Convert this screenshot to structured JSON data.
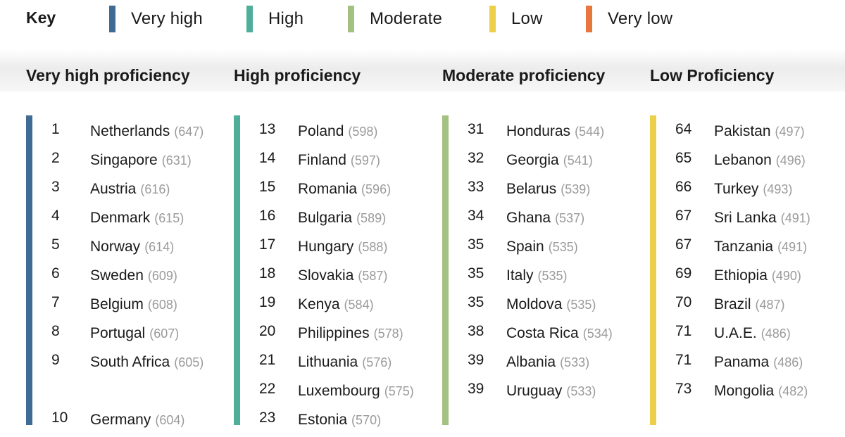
{
  "key": {
    "title": "Key",
    "items": [
      {
        "label": "Very high",
        "color": "#3f6b94"
      },
      {
        "label": "High",
        "color": "#4fae9a"
      },
      {
        "label": "Moderate",
        "color": "#a3c181"
      },
      {
        "label": "Low",
        "color": "#ecd04a"
      },
      {
        "label": "Very low",
        "color": "#e8773e"
      }
    ]
  },
  "columns": [
    {
      "title": "Very high proficiency",
      "color": "#3f6b94",
      "rows": [
        {
          "rank": "1",
          "country": "Netherlands",
          "score": "(647)"
        },
        {
          "rank": "2",
          "country": "Singapore",
          "score": "(631)"
        },
        {
          "rank": "3",
          "country": "Austria",
          "score": "(616)"
        },
        {
          "rank": "4",
          "country": "Denmark",
          "score": "(615)"
        },
        {
          "rank": "5",
          "country": "Norway",
          "score": "(614)"
        },
        {
          "rank": "6",
          "country": "Sweden",
          "score": "(609)"
        },
        {
          "rank": "7",
          "country": "Belgium",
          "score": "(608)"
        },
        {
          "rank": "8",
          "country": "Portugal",
          "score": "(607)"
        },
        {
          "rank": "9",
          "country": "South Africa",
          "score": "(605)"
        },
        {
          "rank": "10",
          "country": "Germany",
          "score": "(604)"
        }
      ]
    },
    {
      "title": "High proficiency",
      "color": "#4fae9a",
      "rows": [
        {
          "rank": "13",
          "country": "Poland",
          "score": "(598)"
        },
        {
          "rank": "14",
          "country": "Finland",
          "score": "(597)"
        },
        {
          "rank": "15",
          "country": "Romania",
          "score": "(596)"
        },
        {
          "rank": "16",
          "country": "Bulgaria",
          "score": "(589)"
        },
        {
          "rank": "17",
          "country": "Hungary",
          "score": "(588)"
        },
        {
          "rank": "18",
          "country": "Slovakia",
          "score": "(587)"
        },
        {
          "rank": "19",
          "country": "Kenya",
          "score": "(584)"
        },
        {
          "rank": "20",
          "country": "Philippines",
          "score": "(578)"
        },
        {
          "rank": "21",
          "country": "Lithuania",
          "score": "(576)"
        },
        {
          "rank": "22",
          "country": "Luxembourg",
          "score": "(575)"
        },
        {
          "rank": "23",
          "country": "Estonia",
          "score": "(570)"
        }
      ]
    },
    {
      "title": "Moderate proficiency",
      "color": "#a3c181",
      "rows": [
        {
          "rank": "31",
          "country": "Honduras",
          "score": "(544)"
        },
        {
          "rank": "32",
          "country": "Georgia",
          "score": "(541)"
        },
        {
          "rank": "33",
          "country": "Belarus",
          "score": "(539)"
        },
        {
          "rank": "34",
          "country": "Ghana",
          "score": "(537)"
        },
        {
          "rank": "35",
          "country": "Spain",
          "score": "(535)"
        },
        {
          "rank": "35",
          "country": "Italy",
          "score": "(535)"
        },
        {
          "rank": "35",
          "country": "Moldova",
          "score": "(535)"
        },
        {
          "rank": "38",
          "country": "Costa Rica",
          "score": "(534)"
        },
        {
          "rank": "39",
          "country": "Albania",
          "score": "(533)"
        },
        {
          "rank": "39",
          "country": "Uruguay",
          "score": "(533)"
        }
      ]
    },
    {
      "title": "Low Proficiency",
      "color": "#ecd04a",
      "rows": [
        {
          "rank": "64",
          "country": "Pakistan",
          "score": "(497)"
        },
        {
          "rank": "65",
          "country": "Lebanon",
          "score": "(496)"
        },
        {
          "rank": "66",
          "country": "Turkey",
          "score": "(493)"
        },
        {
          "rank": "67",
          "country": "Sri Lanka",
          "score": "(491)"
        },
        {
          "rank": "67",
          "country": "Tanzania",
          "score": "(491)"
        },
        {
          "rank": "69",
          "country": "Ethiopia",
          "score": "(490)"
        },
        {
          "rank": "70",
          "country": "Brazil",
          "score": "(487)"
        },
        {
          "rank": "71",
          "country": "U.A.E.",
          "score": "(486)"
        },
        {
          "rank": "71",
          "country": "Panama",
          "score": "(486)"
        },
        {
          "rank": "73",
          "country": "Mongolia",
          "score": "(482)"
        }
      ]
    }
  ]
}
